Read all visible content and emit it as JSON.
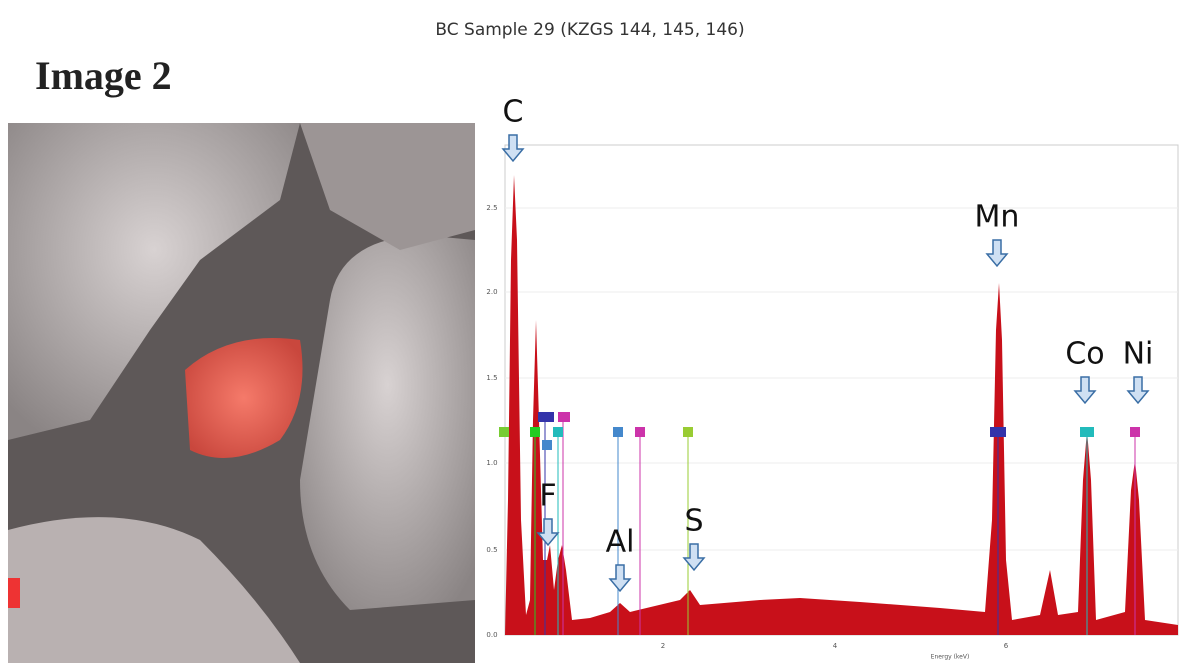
{
  "title": "BC Sample 29 (KZGS 144, 145, 146)",
  "image_label": "Image 2",
  "spectrum": {
    "peak_labels": [
      "C",
      "F",
      "Al",
      "S",
      "Mn",
      "Co",
      "Ni"
    ],
    "y_ticks": [
      "2.5",
      "2.0",
      "1.5",
      "1.0",
      "0.5",
      "0.0"
    ],
    "x_ticks": [
      "2",
      "4",
      "6"
    ],
    "x_label": "Energy (keV)"
  }
}
